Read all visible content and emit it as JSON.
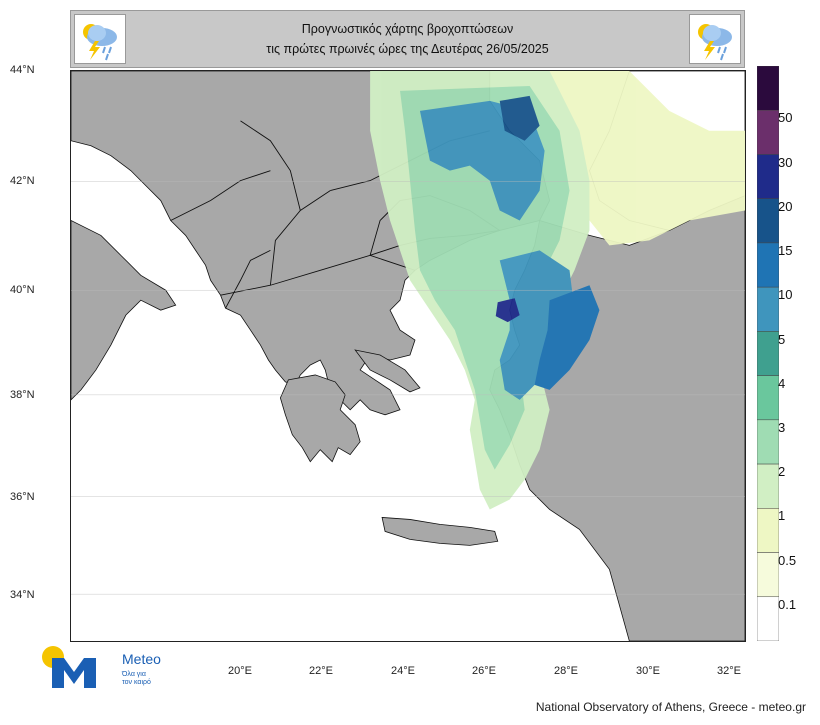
{
  "title": {
    "line1": "Προγνωστικός χάρτης βροχοπτώσεων",
    "line2": "τις πρώτες πρωινές ώρες της Δευτέρας 26/05/2025"
  },
  "header_icons": [
    "rain-cloud-lightning-icon",
    "rain-cloud-lightning-icon"
  ],
  "latitudes": [
    "44°N",
    "42°N",
    "40°N",
    "38°N",
    "36°N",
    "34°N"
  ],
  "longitudes": [
    "20°E",
    "22°E",
    "24°E",
    "26°E",
    "28°E",
    "30°E",
    "32°E"
  ],
  "legend": {
    "labels": [
      "50",
      "30",
      "20",
      "15",
      "10",
      "5",
      "4",
      "3",
      "2",
      "1",
      "0.5",
      "0.1"
    ],
    "colors": [
      "#2b0a3d",
      "#6b2f6b",
      "#1f2b8a",
      "#17538a",
      "#1f74b4",
      "#3f95bd",
      "#3fa08f",
      "#6ac79d",
      "#9fdcb3",
      "#d1efc4",
      "#eef7c4",
      "#f6fbdc",
      "#ffffff"
    ]
  },
  "colors": {
    "land": "#a8a8a8",
    "sea": "#ffffff",
    "border": "#111111"
  },
  "logo": {
    "name": "Meteo",
    "tagline_1": "Όλα για",
    "tagline_2": "τον καιρό"
  },
  "footer": "National Observatory of Athens, Greece - meteo.gr"
}
